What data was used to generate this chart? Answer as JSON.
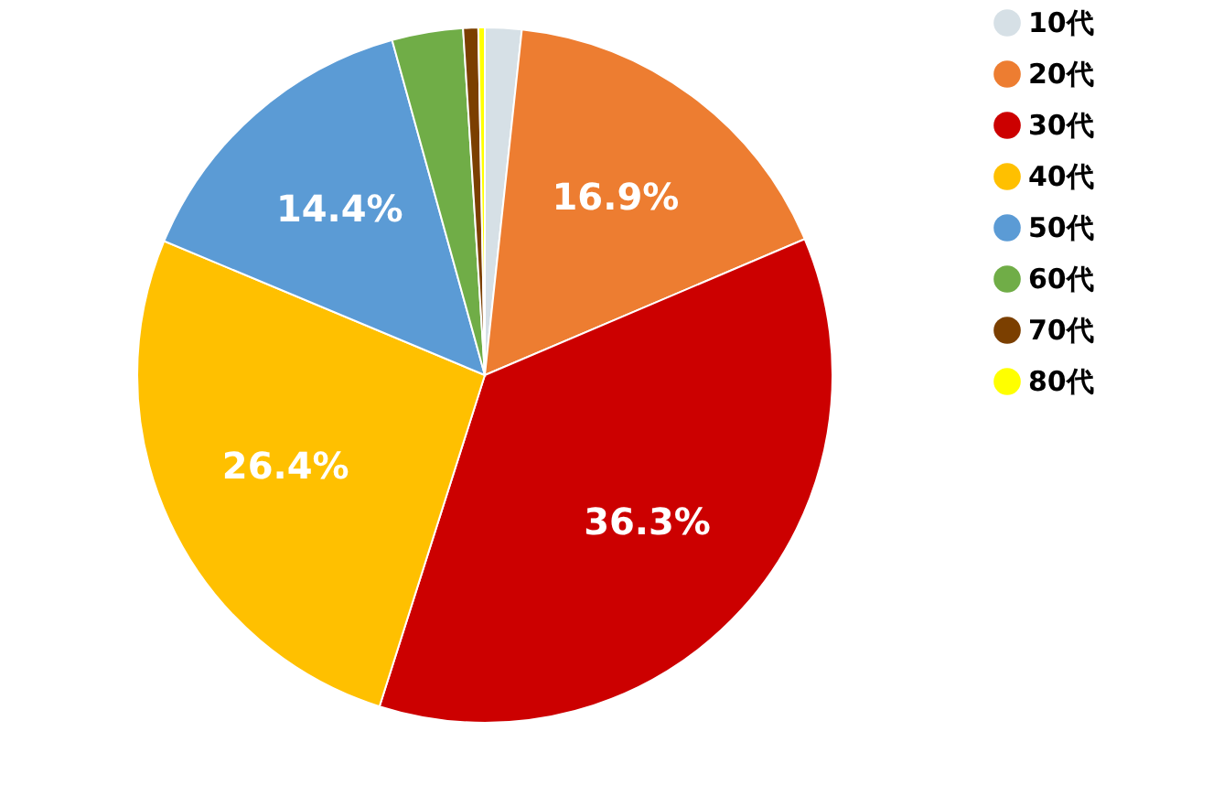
{
  "chart_data": {
    "type": "pie",
    "categories": [
      "10代",
      "20代",
      "30代",
      "40代",
      "50代",
      "60代",
      "70代",
      "80代"
    ],
    "values": [
      1.7,
      16.9,
      36.3,
      26.4,
      14.4,
      3.3,
      0.7,
      0.3
    ],
    "colors": [
      "#d6e0e6",
      "#ed7d31",
      "#cc0000",
      "#ffc000",
      "#5b9bd5",
      "#70ad47",
      "#7b3f00",
      "#ffff00"
    ],
    "value_labels": [
      null,
      "16.9%",
      "36.3%",
      "26.4%",
      "14.4%",
      null,
      null,
      null
    ],
    "legend": "top right"
  }
}
